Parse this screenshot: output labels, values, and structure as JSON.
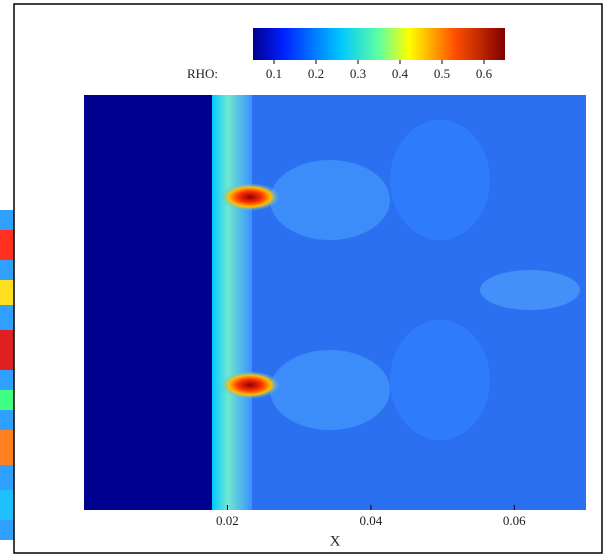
{
  "chart_data": {
    "type": "contour",
    "xlabel": "X",
    "xlim": [
      0,
      0.07
    ],
    "xticks": [
      0.02,
      0.04,
      0.06
    ],
    "colorbar": {
      "label": "RHO:",
      "clim": [
        0.05,
        0.65
      ],
      "ticks": [
        0.1,
        0.2,
        0.3,
        0.4,
        0.5,
        0.6
      ]
    }
  }
}
